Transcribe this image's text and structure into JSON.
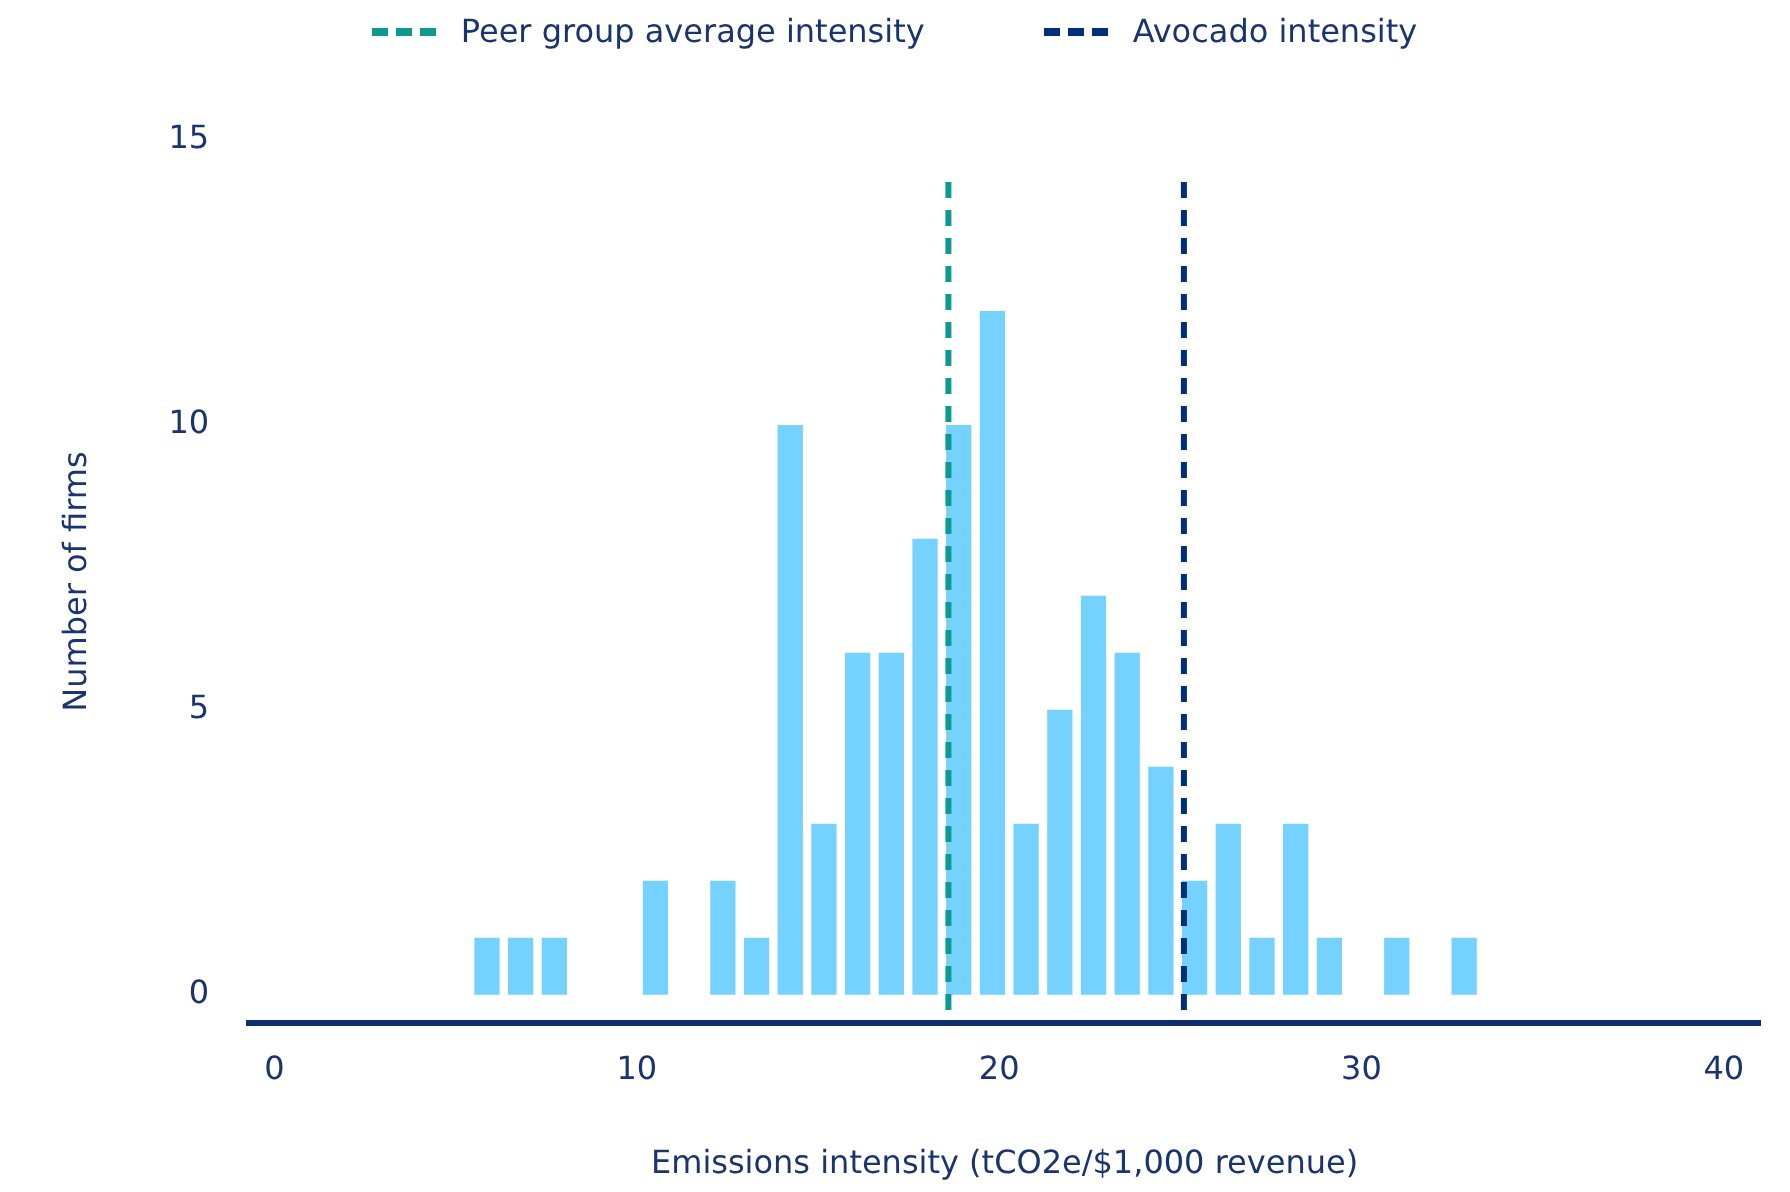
{
  "chart_data": {
    "type": "histogram",
    "xlabel": "Emissions intensity (tCO2e/$1,000 revenue)",
    "ylabel": "Number of firms",
    "bins": [
      5.4,
      6.33,
      7.26,
      8.19,
      9.12,
      10.05,
      10.98,
      11.91,
      12.84,
      13.77,
      14.7,
      15.63,
      16.56,
      17.49,
      18.42,
      19.35,
      20.28,
      21.21,
      22.14,
      23.07,
      24.0,
      24.93,
      25.86,
      26.79,
      27.72,
      28.65,
      29.58,
      30.51,
      31.44,
      32.37,
      33.3
    ],
    "values": [
      1,
      1,
      1,
      0,
      0,
      2,
      0,
      2,
      1,
      10,
      3,
      6,
      6,
      8,
      10,
      12,
      3,
      5,
      7,
      6,
      4,
      2,
      3,
      1,
      3,
      1,
      0,
      1,
      0,
      1
    ],
    "color": "#75d1fd",
    "xlim": [
      -0.7,
      41
    ],
    "xticks": [
      0,
      10,
      20,
      30,
      40
    ],
    "ylim": [
      -0.5,
      15
    ],
    "yticks": [
      0,
      5,
      10,
      15
    ],
    "grid": false,
    "legend": "top",
    "ref_lines": [
      {
        "axis": "x",
        "value": 18.6,
        "label": "Peer group average intensity",
        "color": "#0a9a8f",
        "line_style": "dashed"
      },
      {
        "axis": "x",
        "value": 25.1,
        "label": "Avocado intensity",
        "color": "#002f7a",
        "line_style": "dashed"
      }
    ]
  }
}
